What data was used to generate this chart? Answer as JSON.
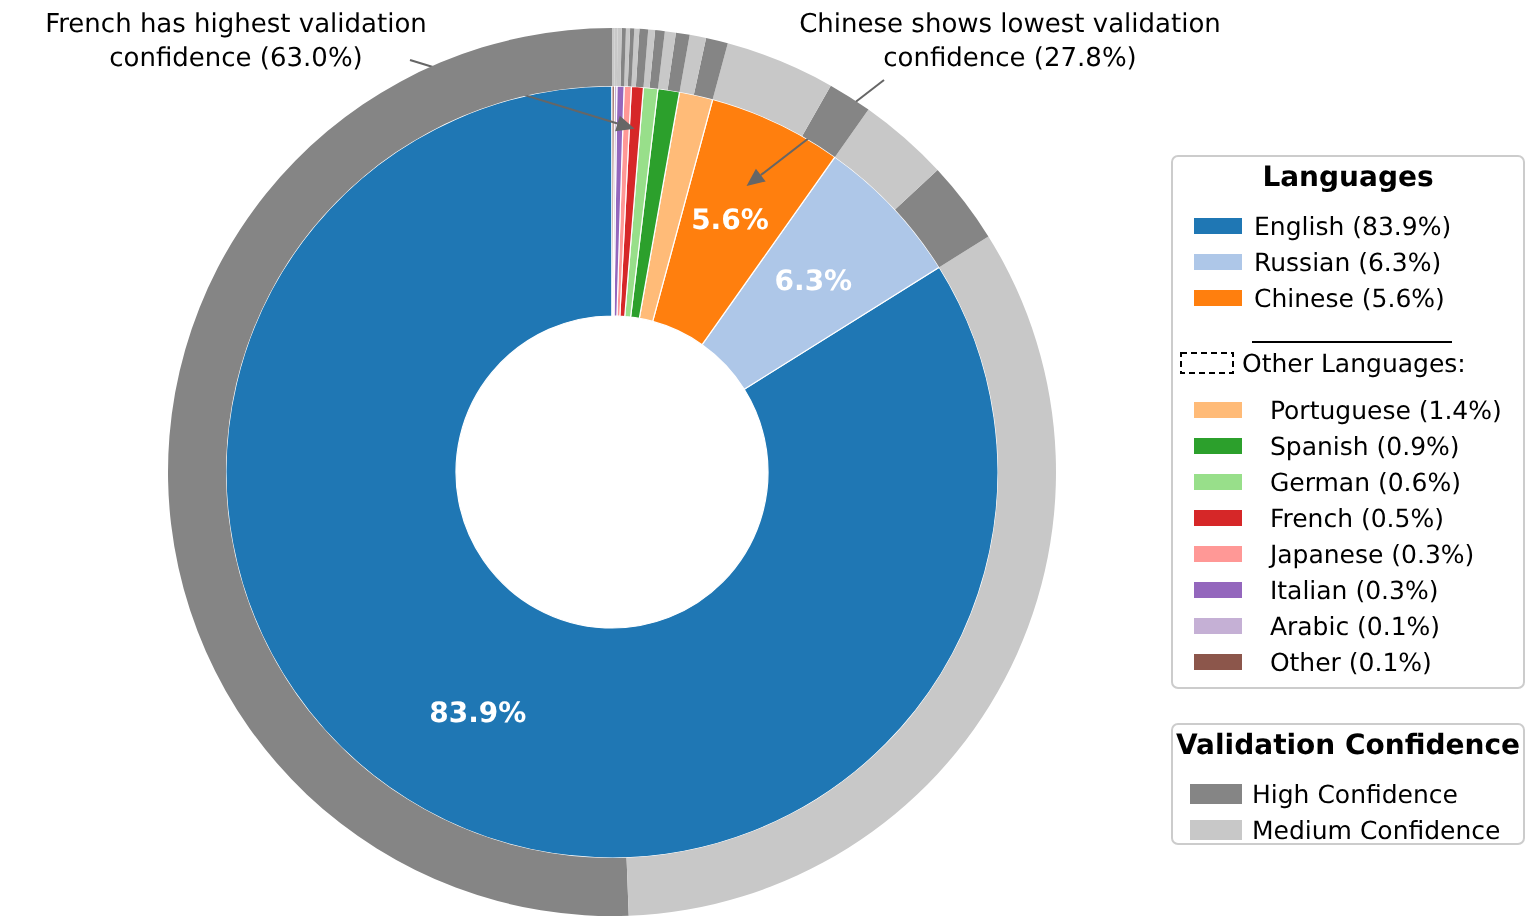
{
  "chart_data": [
    {
      "type": "donut",
      "legend": "right",
      "legend_title": "Languages",
      "categories": [
        "English (83.9%)",
        "Russian (6.3%)",
        "Chinese (5.6%)",
        "Portuguese (1.4%)",
        "Spanish (0.9%)",
        "German (0.6%)",
        "French (0.5%)",
        "Japanese (0.3%)",
        "Italian (0.3%)",
        "Arabic (0.1%)",
        "Other (0.1%)"
      ],
      "values": [
        83.9,
        6.3,
        5.6,
        1.4,
        0.9,
        0.6,
        0.5,
        0.3,
        0.3,
        0.1,
        0.1
      ],
      "colors": [
        "#1f77b4",
        "#aec7e8",
        "#ff7f0e",
        "#ffbb78",
        "#2ca02c",
        "#98df8a",
        "#d62728",
        "#ff9896",
        "#9467bd",
        "#c5b0d5",
        "#8c564b"
      ],
      "value_labels": [
        "83.9%",
        "6.3%",
        "5.6%",
        null,
        null,
        null,
        null,
        null,
        null,
        null,
        null
      ],
      "annotations": [
        {
          "text": "French has highest validation confidence (63.0%)",
          "x": "French (0.5%)"
        },
        {
          "text": "Chinese shows lowest validation confidence (27.8%)",
          "x": "Chinese (5.6%)"
        },
        "Other Languages:"
      ]
    },
    {
      "type": "donut",
      "legend": "bottom right",
      "legend_title": "Validation Confidence",
      "categories": [
        "High Confidence",
        "Medium Confidence",
        null,
        null,
        null,
        null,
        null,
        null,
        null,
        null,
        null,
        null,
        null,
        null,
        null,
        null,
        null,
        null,
        null,
        null
      ],
      "values": [
        50.6,
        33.3,
        3.0,
        3.3,
        1.6,
        4.0,
        0.8,
        0.6,
        0.5,
        0.4,
        0.35,
        0.25,
        0.315,
        0.185,
        0.15,
        0.15,
        0.15,
        0.15,
        0.1,
        0.1
      ],
      "colors": [
        "#858585",
        "#c8c8c8",
        "#858585",
        "#c8c8c8",
        "#858585",
        "#c8c8c8",
        "#858585",
        "#c8c8c8",
        "#858585",
        "#c8c8c8",
        "#858585",
        "#c8c8c8",
        "#858585",
        "#c8c8c8",
        "#858585",
        "#c8c8c8",
        "#858585",
        "#c8c8c8",
        "#c8c8c8",
        "#c8c8c8"
      ]
    }
  ]
}
